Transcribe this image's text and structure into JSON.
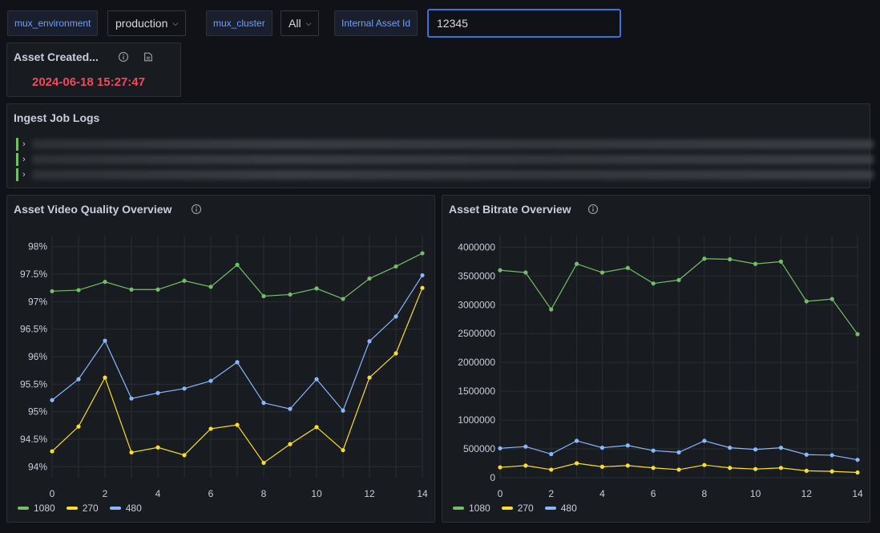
{
  "variables": {
    "env_label": "mux_environment",
    "env_value": "production",
    "cluster_label": "mux_cluster",
    "cluster_value": "All",
    "asset_label": "Internal Asset Id",
    "asset_value": "12345"
  },
  "asset_panel": {
    "title": "Asset Created...",
    "value": "2024-06-18 15:27:47"
  },
  "logs_panel": {
    "title": "Ingest Job Logs",
    "rows": 3
  },
  "colors": {
    "series_1080": "#73bf69",
    "series_270": "#fade2a",
    "series_480": "#8ab8ff",
    "stat_red": "#f2495c"
  },
  "icons": [
    "info-icon",
    "document-icon",
    "chevron-down-icon",
    "chevron-right-icon"
  ],
  "chart_data": [
    {
      "type": "line",
      "title": "Asset Video Quality Overview",
      "x": [
        0,
        1,
        2,
        3,
        4,
        5,
        6,
        7,
        8,
        9,
        10,
        11,
        12,
        13,
        14
      ],
      "xticks": [
        0,
        2,
        4,
        6,
        8,
        10,
        12,
        14
      ],
      "ylim": [
        93.8,
        98.2
      ],
      "yticks": [
        94,
        94.5,
        95,
        95.5,
        96,
        96.5,
        97,
        97.5,
        98
      ],
      "ytick_labels": [
        "94%",
        "94.5%",
        "95%",
        "95.5%",
        "96%",
        "96.5%",
        "97%",
        "97.5%",
        "98%"
      ],
      "grid": true,
      "legend": "bottom-left",
      "series": [
        {
          "name": "1080",
          "color": "#73bf69",
          "values": [
            97.19,
            97.21,
            97.36,
            97.22,
            97.22,
            97.38,
            97.27,
            97.67,
            97.1,
            97.13,
            97.24,
            97.05,
            97.42,
            97.64,
            97.88
          ]
        },
        {
          "name": "270",
          "color": "#fade2a",
          "values": [
            94.28,
            94.73,
            95.62,
            94.26,
            94.35,
            94.21,
            94.69,
            94.76,
            94.07,
            94.41,
            94.72,
            94.3,
            95.62,
            96.06,
            97.25
          ]
        },
        {
          "name": "480",
          "color": "#8ab8ff",
          "values": [
            95.21,
            95.59,
            96.29,
            95.24,
            95.34,
            95.42,
            95.56,
            95.9,
            95.16,
            95.05,
            95.59,
            95.02,
            96.28,
            96.73,
            97.48
          ]
        }
      ]
    },
    {
      "type": "line",
      "title": "Asset Bitrate Overview",
      "x": [
        0,
        1,
        2,
        3,
        4,
        5,
        6,
        7,
        8,
        9,
        10,
        11,
        12,
        13,
        14
      ],
      "xticks": [
        0,
        2,
        4,
        6,
        8,
        10,
        12,
        14
      ],
      "ylim": [
        0,
        4200000
      ],
      "yticks": [
        0,
        500000,
        1000000,
        1500000,
        2000000,
        2500000,
        3000000,
        3500000,
        4000000
      ],
      "ytick_labels": [
        "0",
        "500000",
        "1000000",
        "1500000",
        "2000000",
        "2500000",
        "3000000",
        "3500000",
        "4000000"
      ],
      "grid": true,
      "legend": "bottom-left",
      "series": [
        {
          "name": "1080",
          "color": "#73bf69",
          "values": [
            3600000,
            3560000,
            2920000,
            3710000,
            3560000,
            3640000,
            3370000,
            3430000,
            3800000,
            3790000,
            3710000,
            3750000,
            3060000,
            3100000,
            2490000
          ]
        },
        {
          "name": "270",
          "color": "#fade2a",
          "values": [
            180000,
            210000,
            140000,
            250000,
            190000,
            210000,
            170000,
            140000,
            220000,
            170000,
            150000,
            170000,
            120000,
            110000,
            90000
          ]
        },
        {
          "name": "480",
          "color": "#8ab8ff",
          "values": [
            510000,
            540000,
            410000,
            640000,
            520000,
            560000,
            470000,
            440000,
            640000,
            520000,
            490000,
            520000,
            400000,
            390000,
            310000
          ]
        }
      ]
    }
  ]
}
